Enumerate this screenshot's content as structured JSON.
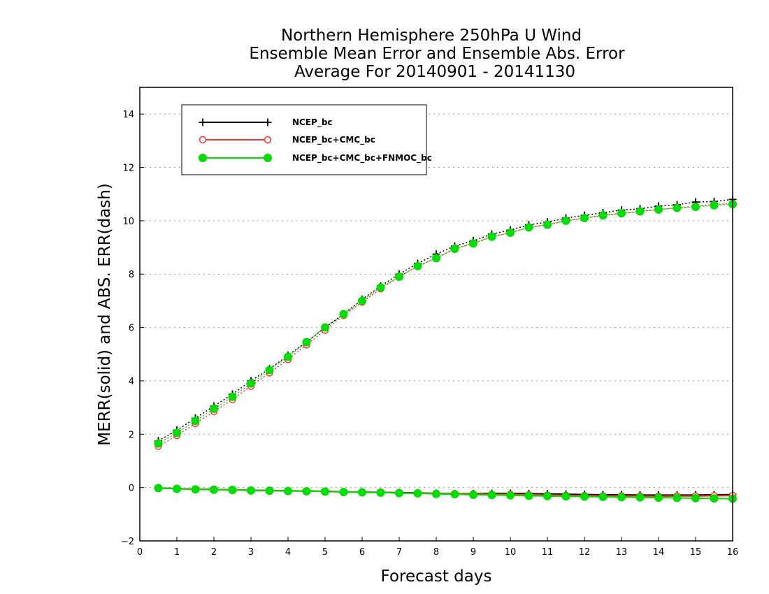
{
  "chart_data": {
    "type": "line",
    "title": [
      "Northern Hemisphere 250hPa U Wind",
      "Ensemble Mean Error and Ensemble Abs. Error",
      "Average For 20140901 - 20141130"
    ],
    "xlabel": "Forecast days",
    "ylabel": "MERR(solid) and ABS. ERR(dash)",
    "xlim": [
      0,
      16
    ],
    "ylim": [
      -2,
      15
    ],
    "xticks": [
      0,
      1,
      2,
      3,
      4,
      5,
      6,
      7,
      8,
      9,
      10,
      11,
      12,
      13,
      14,
      15,
      16
    ],
    "yticks": [
      -2,
      0,
      2,
      4,
      6,
      8,
      10,
      12,
      14
    ],
    "grid": "horizontal dotted",
    "legend_position": "top-left",
    "x": [
      0.5,
      1,
      1.5,
      2,
      2.5,
      3,
      3.5,
      4,
      4.5,
      5,
      5.5,
      6,
      6.5,
      7,
      7.5,
      8,
      8.5,
      9,
      9.5,
      10,
      10.5,
      11,
      11.5,
      12,
      12.5,
      13,
      13.5,
      14,
      14.5,
      15,
      15.5,
      16
    ],
    "series": [
      {
        "name": "NCEP_bc",
        "color": "#000000",
        "marker": "plus",
        "abs_error": [
          1.75,
          2.15,
          2.6,
          3.05,
          3.5,
          4.0,
          4.45,
          4.95,
          5.45,
          6.0,
          6.5,
          7.05,
          7.55,
          8.0,
          8.4,
          8.75,
          9.05,
          9.25,
          9.5,
          9.65,
          9.85,
          9.95,
          10.1,
          10.2,
          10.3,
          10.4,
          10.45,
          10.55,
          10.6,
          10.7,
          10.72,
          10.8
        ],
        "mean_error": [
          -0.02,
          -0.04,
          -0.06,
          -0.07,
          -0.08,
          -0.1,
          -0.11,
          -0.12,
          -0.13,
          -0.14,
          -0.16,
          -0.17,
          -0.18,
          -0.19,
          -0.2,
          -0.22,
          -0.23,
          -0.23,
          -0.22,
          -0.22,
          -0.23,
          -0.24,
          -0.25,
          -0.26,
          -0.27,
          -0.27,
          -0.28,
          -0.28,
          -0.28,
          -0.28,
          -0.27,
          -0.26
        ]
      },
      {
        "name": "NCEP_bc+CMC_bc",
        "color": "#ff3333",
        "marker": "open-circle",
        "abs_error": [
          1.55,
          1.95,
          2.4,
          2.85,
          3.3,
          3.8,
          4.3,
          4.8,
          5.35,
          5.9,
          6.45,
          6.95,
          7.45,
          7.9,
          8.3,
          8.6,
          8.95,
          9.15,
          9.4,
          9.55,
          9.75,
          9.85,
          10.0,
          10.1,
          10.2,
          10.28,
          10.35,
          10.42,
          10.48,
          10.55,
          10.6,
          10.65
        ],
        "mean_error": [
          -0.02,
          -0.04,
          -0.06,
          -0.07,
          -0.08,
          -0.1,
          -0.11,
          -0.12,
          -0.13,
          -0.14,
          -0.16,
          -0.17,
          -0.18,
          -0.2,
          -0.21,
          -0.22,
          -0.23,
          -0.24,
          -0.25,
          -0.25,
          -0.27,
          -0.28,
          -0.29,
          -0.3,
          -0.31,
          -0.31,
          -0.32,
          -0.33,
          -0.32,
          -0.32,
          -0.31,
          -0.3
        ]
      },
      {
        "name": "NCEP_bc+CMC_bc+FNMOC_bc",
        "color": "#00dd00",
        "marker": "filled-circle",
        "abs_error": [
          1.65,
          2.05,
          2.5,
          2.95,
          3.4,
          3.9,
          4.4,
          4.9,
          5.45,
          6.0,
          6.5,
          7.0,
          7.5,
          7.9,
          8.3,
          8.6,
          8.95,
          9.15,
          9.4,
          9.55,
          9.75,
          9.85,
          10.0,
          10.1,
          10.2,
          10.28,
          10.35,
          10.42,
          10.48,
          10.52,
          10.58,
          10.62
        ],
        "mean_error": [
          -0.02,
          -0.05,
          -0.07,
          -0.08,
          -0.09,
          -0.11,
          -0.12,
          -0.13,
          -0.14,
          -0.15,
          -0.17,
          -0.18,
          -0.19,
          -0.21,
          -0.22,
          -0.24,
          -0.25,
          -0.27,
          -0.28,
          -0.29,
          -0.31,
          -0.32,
          -0.33,
          -0.34,
          -0.35,
          -0.36,
          -0.37,
          -0.38,
          -0.39,
          -0.4,
          -0.41,
          -0.42
        ]
      }
    ]
  }
}
